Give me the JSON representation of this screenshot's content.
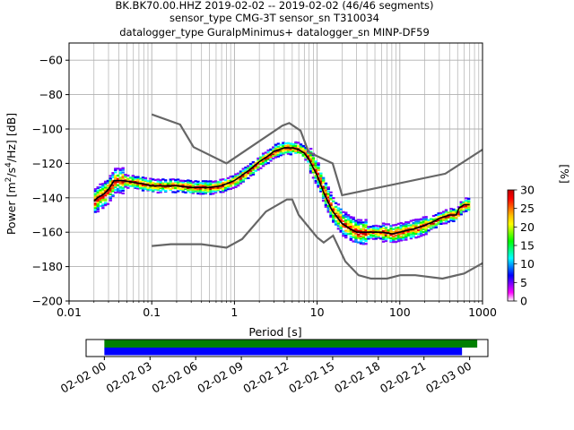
{
  "figure": {
    "title_lines": [
      "BK.BK70.00.HHZ   2019-02-02 -- 2019-02-02  (46/46 segments)",
      "sensor_type CMG-3T sensor_sn T310034",
      "datalogger_type GuralpMinimus+ datalogger_sn MINP-DF59"
    ]
  },
  "chart_data": [
    {
      "type": "heatmap",
      "title": "BK.BK70.00.HHZ   2019-02-02 -- 2019-02-02  (46/46 segments)",
      "xlabel": "Period [s]",
      "ylabel_parts": {
        "prefix": "Power [m",
        "sup1": "2",
        "mid": "/s",
        "sup2": "4",
        "suffix": "/Hz] [dB]"
      },
      "x_scale": "log",
      "xlim": [
        0.01,
        1000
      ],
      "ylim": [
        -200,
        -50
      ],
      "x_tick_labels": [
        "0.01",
        "0.1",
        "1",
        "10",
        "100",
        "1000"
      ],
      "x_tick_values": [
        0.01,
        0.1,
        1,
        10,
        100,
        1000
      ],
      "y_tick_labels": [
        "−60",
        "−80",
        "−100",
        "−120",
        "−140",
        "−160",
        "−180",
        "−200"
      ],
      "y_tick_values": [
        -60,
        -80,
        -100,
        -120,
        -140,
        -160,
        -180,
        -200
      ],
      "grid": true,
      "mean_curve": {
        "color": "#000000",
        "x": [
          0.02,
          0.022,
          0.026,
          0.03,
          0.035,
          0.045,
          0.06,
          0.08,
          0.1,
          0.15,
          0.2,
          0.3,
          0.4,
          0.5,
          0.7,
          1.0,
          1.5,
          2.0,
          2.5,
          3.0,
          4.0,
          5.0,
          6.0,
          7.0,
          8.0,
          10.0,
          12.0,
          15.0,
          20.0,
          25.0,
          30.0,
          40.0,
          50.0,
          60.0,
          80.0,
          100.0,
          120.0,
          150.0,
          200.0,
          250.0,
          300.0,
          400.0,
          480.0,
          520.0,
          600.0,
          700.0
        ],
        "y": [
          -142,
          -140,
          -138,
          -135,
          -130,
          -130,
          -131,
          -132,
          -133,
          -133,
          -133,
          -134,
          -134,
          -134,
          -133,
          -130,
          -124,
          -119,
          -116,
          -113,
          -111,
          -111,
          -112,
          -114,
          -118,
          -127,
          -137,
          -147,
          -155,
          -158,
          -160,
          -160,
          -160,
          -160,
          -161,
          -160,
          -159,
          -158,
          -156,
          -154,
          -152,
          -150,
          -150,
          -146,
          -144,
          -144
        ]
      },
      "nlnm": {
        "color": "#666666",
        "x": [
          0.1,
          0.17,
          0.4,
          0.8,
          1.24,
          2.4,
          4.3,
          5.0,
          6.0,
          10.0,
          12.0,
          15.6,
          21.9,
          31.6,
          45.0,
          70.0,
          101.0,
          154.0,
          328.0,
          600.0,
          1000.0
        ],
        "y": [
          -168,
          -167,
          -167,
          -169,
          -164,
          -148,
          -141,
          -141,
          -150,
          -163,
          -166,
          -162,
          -177,
          -185,
          -187,
          -187,
          -185,
          -185,
          -187,
          -184,
          -178
        ]
      },
      "nhnm": {
        "color": "#666666",
        "x": [
          0.1,
          0.22,
          0.32,
          0.8,
          3.8,
          4.6,
          6.3,
          7.9,
          15.4,
          20.0,
          354.8,
          1000.0
        ],
        "y": [
          -91.5,
          -97.4,
          -110.5,
          -120,
          -98,
          -96.5,
          -101,
          -113.5,
          -120,
          -138.5,
          -126,
          -112
        ]
      },
      "colorbar": {
        "label": "[%]",
        "range": [
          0,
          30
        ],
        "tick_labels": [
          "0",
          "5",
          "10",
          "15",
          "20",
          "25",
          "30"
        ],
        "tick_values": [
          0,
          5,
          10,
          15,
          20,
          25,
          30
        ],
        "colormap": [
          "#ffffff",
          "#ff00ff",
          "#8000ff",
          "#0000ff",
          "#0080ff",
          "#00ffff",
          "#00ff80",
          "#00ff00",
          "#80ff00",
          "#ffff00",
          "#ffc000",
          "#ff6000",
          "#ff0000",
          "#c00000"
        ]
      }
    },
    {
      "type": "timeline",
      "x_tick_labels": [
        "02-02 00",
        "02-02 03",
        "02-02 06",
        "02-02 09",
        "02-02 12",
        "02-02 15",
        "02-02 18",
        "02-02 21",
        "02-03 00"
      ],
      "x_tick_hours": [
        0,
        3,
        6,
        9,
        12,
        15,
        18,
        21,
        24
      ],
      "xlim_hours": [
        -1.2,
        25.2
      ],
      "bars": [
        {
          "color": "#008000",
          "start_hour": 0,
          "end_hour": 24.5
        },
        {
          "color": "#0000ff",
          "start_hour": 0,
          "end_hour": 23.5
        }
      ]
    }
  ]
}
